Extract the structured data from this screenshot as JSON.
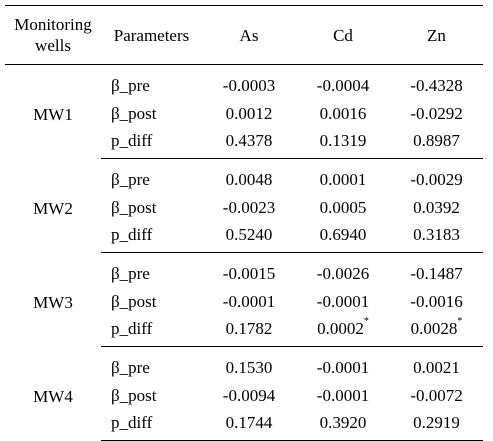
{
  "header": {
    "well_line1": "Monitoring",
    "well_line2": "wells",
    "parameters": "Parameters",
    "as": "As",
    "cd": "Cd",
    "zn": "Zn"
  },
  "groups": [
    {
      "well": "MW1",
      "rows": [
        {
          "param": "β_pre",
          "as": "-0.0003",
          "cd": "-0.0004",
          "zn": "-0.4328"
        },
        {
          "param": "β_post",
          "as": "0.0012",
          "cd": "0.0016",
          "zn": "-0.0292"
        },
        {
          "param": "p_diff",
          "as": "0.4378",
          "cd": "0.1319",
          "zn": "0.8987"
        }
      ]
    },
    {
      "well": "MW2",
      "rows": [
        {
          "param": "β_pre",
          "as": "0.0048",
          "cd": "0.0001",
          "zn": "-0.0029"
        },
        {
          "param": "β_post",
          "as": "-0.0023",
          "cd": "0.0005",
          "zn": "0.0392"
        },
        {
          "param": "p_diff",
          "as": "0.5240",
          "cd": "0.6940",
          "zn": "0.3183"
        }
      ]
    },
    {
      "well": "MW3",
      "rows": [
        {
          "param": "β_pre",
          "as": "-0.0015",
          "cd": "-0.0026",
          "zn": "-0.1487"
        },
        {
          "param": "β_post",
          "as": "-0.0001",
          "cd": "-0.0001",
          "zn": "-0.0016"
        },
        {
          "param": "p_diff",
          "as": "0.1782",
          "cd": "0.0002",
          "cd_mark": "*",
          "zn": "0.0028",
          "zn_mark": "*"
        }
      ]
    },
    {
      "well": "MW4",
      "rows": [
        {
          "param": "β_pre",
          "as": "0.1530",
          "cd": "-0.0001",
          "zn": "0.0021"
        },
        {
          "param": "β_post",
          "as": "-0.0094",
          "cd": "-0.0001",
          "zn": "-0.0072"
        },
        {
          "param": "p_diff",
          "as": "0.1744",
          "cd": "0.3920",
          "zn": "0.2919"
        }
      ]
    }
  ]
}
